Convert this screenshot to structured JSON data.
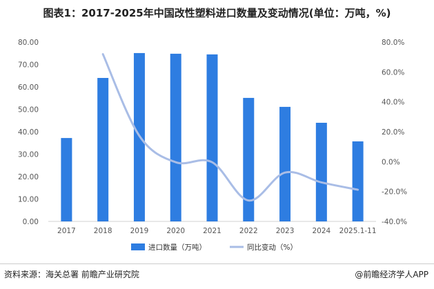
{
  "chart_data": {
    "type": "bar+line",
    "title": "图表1：2017-2025年中国改性塑料进口数量及变动情况(单位：万吨，%)",
    "categories": [
      "2017",
      "2018",
      "2019",
      "2020",
      "2021",
      "2022",
      "2023",
      "2024",
      "2025.1-11"
    ],
    "series": [
      {
        "name": "进口数量（万吨）",
        "type": "bar",
        "axis": "left",
        "color": "#2e7de1",
        "values": [
          37.2,
          64.0,
          75.1,
          74.8,
          74.5,
          55.1,
          51.1,
          44.0,
          35.7
        ]
      },
      {
        "name": "同比变动（%）",
        "type": "line",
        "axis": "right",
        "color": "#a9bde6",
        "values": [
          null,
          71.9,
          17.3,
          -0.4,
          -0.4,
          -26.0,
          -7.3,
          -13.9,
          -18.8
        ]
      }
    ],
    "left_axis": {
      "ylim": [
        0,
        80
      ],
      "ticks": [
        "0.00",
        "10.00",
        "20.00",
        "30.00",
        "40.00",
        "50.00",
        "60.00",
        "70.00",
        "80.00"
      ]
    },
    "right_axis": {
      "ylim": [
        -40,
        80
      ],
      "ticks": [
        "-40.0%",
        "-20.0%",
        "0.0%",
        "20.0%",
        "40.0%",
        "60.0%",
        "80.0%"
      ]
    },
    "legend": "bottom",
    "grid": false
  },
  "footer": {
    "source": "资料来源：海关总署 前瞻产业研究院",
    "brand": "@前瞻经济学人APP"
  }
}
